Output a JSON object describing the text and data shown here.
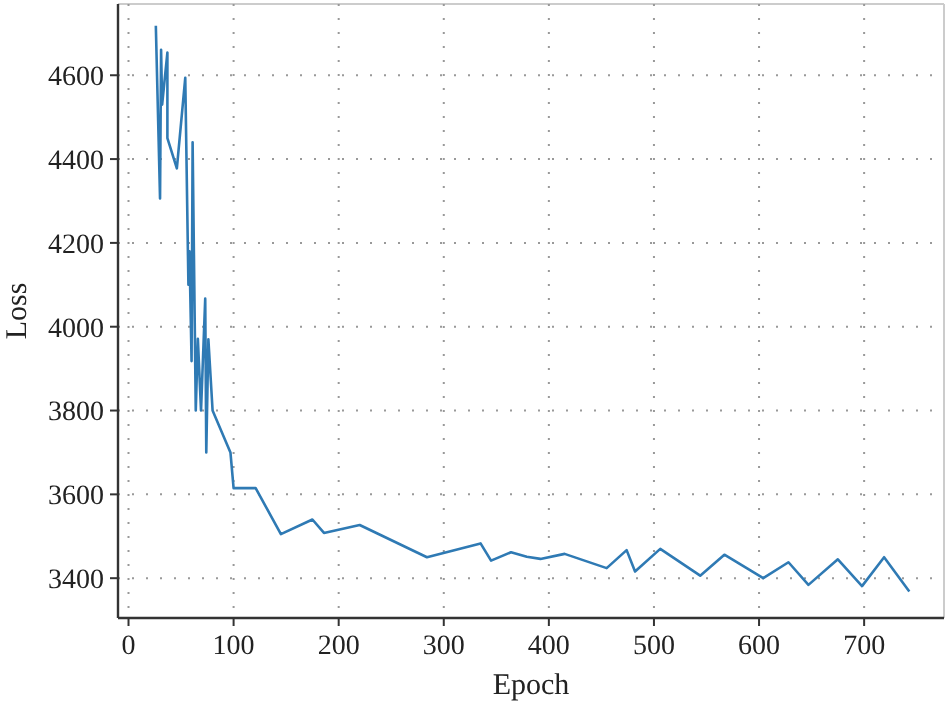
{
  "chart_data": {
    "type": "line",
    "xlabel": "Epoch",
    "ylabel": "Loss",
    "x": [
      26,
      30,
      31,
      32,
      37,
      37,
      46,
      54,
      57,
      58,
      60,
      61,
      64,
      66,
      69,
      73,
      74,
      76,
      80,
      97,
      100,
      121,
      145,
      175,
      186,
      220,
      284,
      335,
      345,
      364,
      379,
      392,
      415,
      455,
      474,
      482,
      506,
      544,
      567,
      604,
      628,
      647,
      675,
      698,
      719,
      743
    ],
    "series": [
      {
        "color": "#2f7ab4",
        "values": [
          4718,
          4306,
          4661,
          4530,
          4654,
          4450,
          4378,
          4594,
          4100,
          4180,
          3918,
          4440,
          3800,
          3971,
          3800,
          4067,
          3700,
          3970,
          3800,
          3700,
          3615,
          3615,
          3505,
          3540,
          3508,
          3527,
          3450,
          3483,
          3442,
          3462,
          3451,
          3446,
          3458,
          3424,
          3467,
          3416,
          3470,
          3406,
          3456,
          3400,
          3438,
          3384,
          3445,
          3381,
          3450,
          3368
        ]
      }
    ],
    "xlim": [
      -10,
      776
    ],
    "ylim": [
      3305,
      4770
    ],
    "xticks": [
      0,
      100,
      200,
      300,
      400,
      500,
      600,
      700
    ],
    "yticks": [
      3400,
      3600,
      3800,
      4000,
      4200,
      4400,
      4600
    ],
    "grid": true,
    "line_style": "solid",
    "marker": "none"
  }
}
